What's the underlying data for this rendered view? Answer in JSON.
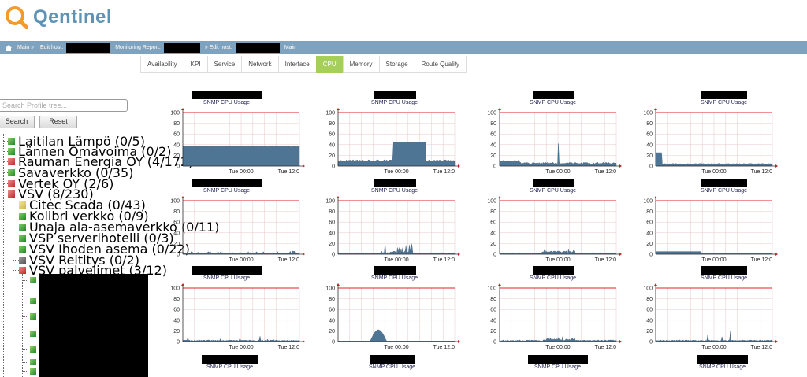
{
  "app": {
    "title": "Qentinel"
  },
  "navbar": {
    "items": [
      {
        "label": "Main »",
        "redact_width": 0
      },
      {
        "label": "Edit host:",
        "redact_width": 56
      },
      {
        "label": "Monitoring Report:",
        "redact_width": 46
      },
      {
        "label": "» Edit host:",
        "redact_width": 56
      },
      {
        "label": "Main",
        "redact_width": 0
      }
    ]
  },
  "tabs": [
    {
      "label": "Availability",
      "active": false
    },
    {
      "label": "KPI",
      "active": false
    },
    {
      "label": "Service",
      "active": false
    },
    {
      "label": "Network",
      "active": false
    },
    {
      "label": "Interface",
      "active": false
    },
    {
      "label": "CPU",
      "active": true
    },
    {
      "label": "Memory",
      "active": false
    },
    {
      "label": "Storage",
      "active": false
    },
    {
      "label": "Route Quality",
      "active": false
    }
  ],
  "search": {
    "placeholder": "Search Profile tree...",
    "search_label": "Search",
    "reset_label": "Reset"
  },
  "tree": {
    "top_items": [
      {
        "label": "Laitilan Lämpö (0/5)",
        "status": "green"
      },
      {
        "label": "Lännen Omavoima (0/2)",
        "status": "green"
      },
      {
        "label": "Rauman Energia OY (4/172)",
        "status": "red"
      },
      {
        "label": "Savaverkko (0/35)",
        "status": "green"
      },
      {
        "label": "Vertek OY (2/6)",
        "status": "red"
      },
      {
        "label": "VSV (8/230)",
        "status": "red"
      }
    ],
    "vsv_children": [
      {
        "label": "Citec Scada (0/43)",
        "status": "yellow"
      },
      {
        "label": "Kolibri verkko (0/9)",
        "status": "green"
      },
      {
        "label": "Unaja ala-asemaverkko (0/11)",
        "status": "green"
      },
      {
        "label": "VSP serverihotelli (0/3)",
        "status": "green"
      },
      {
        "label": "VSV Ihoden asema (0/22)",
        "status": "green"
      },
      {
        "label": "VSV Reititys (0/2)",
        "status": "gray"
      },
      {
        "label": "VSV palvelimet (3/12)",
        "status": "red"
      }
    ],
    "leaf_statuses": [
      "green",
      "green",
      "green",
      "green",
      "green",
      "green",
      "green",
      "red"
    ]
  },
  "graphs": {
    "subtitle": "SNMP CPU Usage",
    "y_ticks": [
      "100",
      "80",
      "60",
      "40",
      "20",
      "0"
    ],
    "x_ticks": [
      "Tue 00:00",
      "Tue 12:0"
    ],
    "items": [
      {
        "level": 38,
        "shape": "flat"
      },
      {
        "level": 45,
        "shape": "block"
      },
      {
        "level": 42,
        "shape": "spike"
      },
      {
        "level": 25,
        "shape": "earlyspike"
      },
      {
        "level": 3,
        "shape": "flat"
      },
      {
        "level": 22,
        "shape": "bumps"
      },
      {
        "level": 10,
        "shape": "bumps"
      },
      {
        "level": 5,
        "shape": "earlyblock"
      },
      {
        "level": 10,
        "shape": "spikes"
      },
      {
        "level": 22,
        "shape": "hump"
      },
      {
        "level": 10,
        "shape": "bumps"
      },
      {
        "level": 28,
        "shape": "spikes"
      }
    ]
  }
}
